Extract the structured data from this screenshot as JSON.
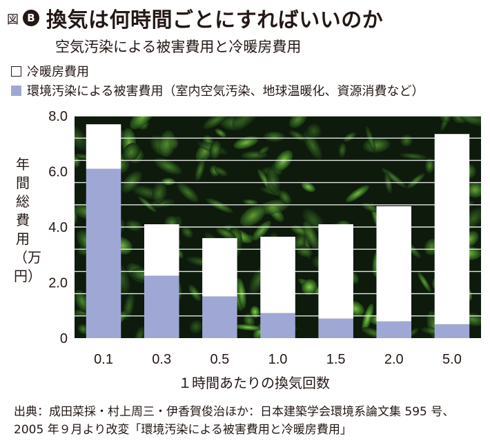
{
  "header": {
    "figure_label": "図",
    "badge": "B",
    "title": "換気は何時間ごとにすればいいのか",
    "subtitle": "空気汚染による被害費用と冷暖房費用"
  },
  "legend": [
    {
      "label": "冷暖房費用",
      "color": "#ffffff"
    },
    {
      "label": "環境汚染による被害費用（室内空気汚染、地球温暖化、資源消費など）",
      "color": "#9fa8d4"
    }
  ],
  "chart_data": {
    "type": "bar",
    "stacked": true,
    "categories": [
      "0.1",
      "0.3",
      "0.5",
      "1.0",
      "1.5",
      "2.0",
      "5.0"
    ],
    "series": [
      {
        "name": "環境汚染による被害費用（室内空気汚染、地球温暖化、資源消費など）",
        "color": "#9fa8d4",
        "values": [
          6.1,
          2.25,
          1.5,
          0.9,
          0.7,
          0.6,
          0.5
        ]
      },
      {
        "name": "冷暖房費用",
        "color": "#ffffff",
        "values": [
          1.6,
          1.85,
          2.1,
          2.75,
          3.4,
          4.15,
          6.85
        ]
      }
    ],
    "ylim": [
      0,
      8.0
    ],
    "yticks": [
      "0",
      "2.0",
      "4.0",
      "6.0",
      "8.0"
    ],
    "ytick_values": [
      0,
      2,
      4,
      6,
      8
    ],
    "ylabel": "年間総費用（万円）",
    "xlabel": "１時間あたりの換気回数",
    "grid": true,
    "background": "foliage photo"
  },
  "source": {
    "line1": "出典：成田菜採・村上周三・伊香賀俊治ほか：日本建築学会環境系論文集 595 号、",
    "line2": "2005 年９月より改変「環境汚染による被害費用と冷暖房費用」"
  },
  "colors": {
    "env_bar": "#9fa8d4",
    "heat_bar": "#ffffff",
    "text": "#231815",
    "background_dark": "#0d1a0c",
    "foliage": "#3f7a28"
  }
}
